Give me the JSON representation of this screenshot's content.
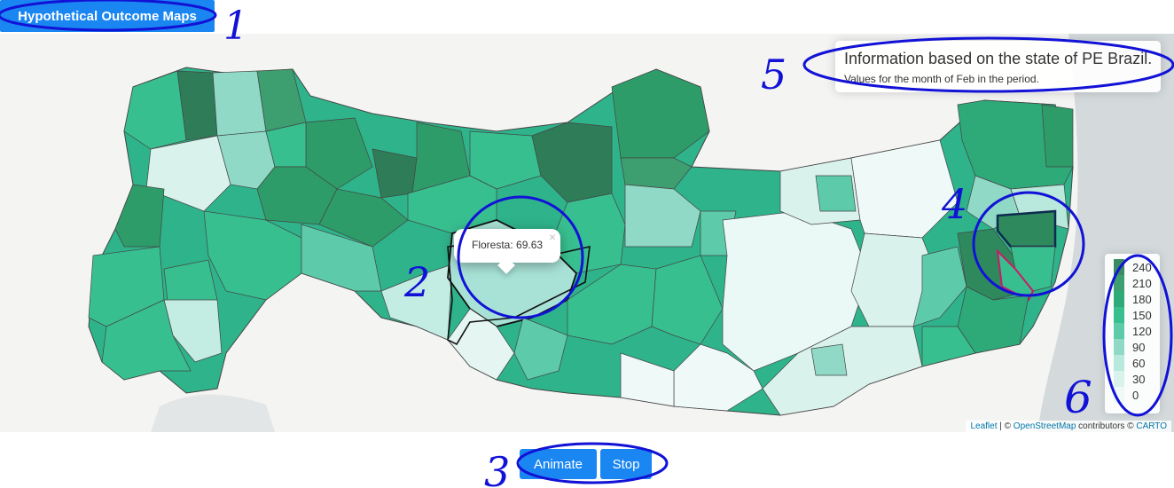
{
  "header": {
    "title": "Hypothetical Outcome Maps"
  },
  "info": {
    "title": "Information based on the state of PE Brazil.",
    "subtitle": "Values for the month of Feb in the period."
  },
  "popup": {
    "text": "Floresta: 69.63",
    "close": "×"
  },
  "legend": {
    "labels": [
      "240",
      "210",
      "180",
      "150",
      "120",
      "90",
      "60",
      "30",
      "0"
    ],
    "colors": [
      "#3c8a63",
      "#3d9e6f",
      "#2eaa79",
      "#38bf90",
      "#5dcbaa",
      "#8fd9c6",
      "#b9e8dc",
      "#daf2ec",
      "#eef9f8"
    ]
  },
  "attribution": {
    "leaflet": "Leaflet",
    "sep": " | © ",
    "osm": "OpenStreetMap",
    "mid": " contributors © ",
    "carto": "CARTO"
  },
  "controls": {
    "animate": "Animate",
    "stop": "Stop"
  },
  "annotations": [
    "1",
    "2",
    "3",
    "4",
    "5",
    "6"
  ]
}
